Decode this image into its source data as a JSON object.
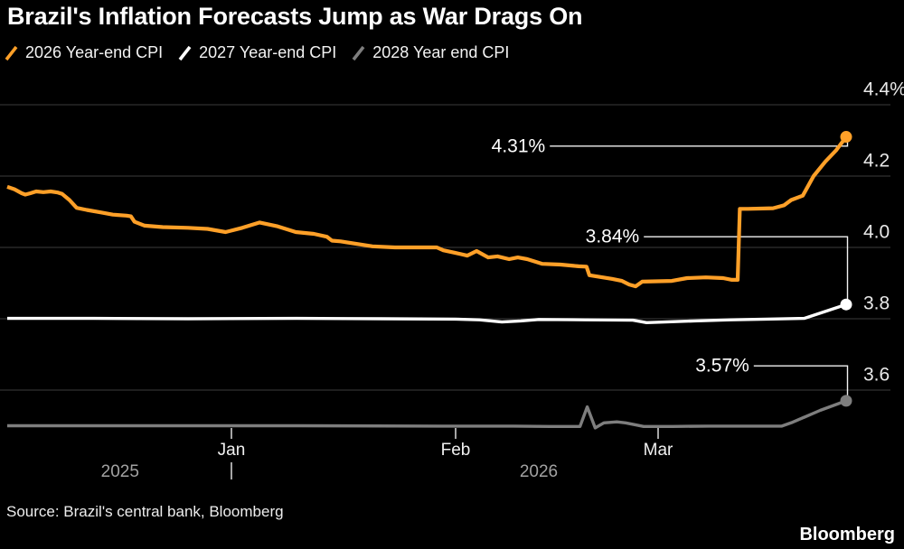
{
  "title": "Brazil's Inflation Forecasts Jump as War Drags On",
  "source": "Source: Brazil's central bank, Bloomberg",
  "logo": "Bloomberg",
  "colors": {
    "background": "#000000",
    "accent_orange": "#FFA028",
    "series_white": "#FFFFFF",
    "series_gray": "#7E7E7E"
  },
  "chart_data": {
    "type": "line",
    "title": "Brazil's Inflation Forecasts Jump as War Drags On",
    "xlabel": "",
    "ylabel": "Year-end CPI forecast (%)",
    "grid": true,
    "legend_position": "top-left",
    "x_axis": {
      "unit": "days from 2025-12-01",
      "total_days": 116,
      "month_ticks": [
        {
          "label": "Jan",
          "day": 31
        },
        {
          "label": "Feb",
          "day": 62
        },
        {
          "label": "Mar",
          "day": 90
        }
      ],
      "year_labels": [
        {
          "label": "2025",
          "day": 15.6
        },
        {
          "label": "2026",
          "day": 73.5
        }
      ],
      "year_boundary_tick_day": 31
    },
    "y_axis": {
      "unit": "%",
      "ylim": [
        3.44,
        4.44
      ],
      "ticks": [
        {
          "label": "4.4%",
          "value": 4.4
        },
        {
          "label": "4.2",
          "value": 4.2
        },
        {
          "label": "4.0",
          "value": 4.0
        },
        {
          "label": "3.8",
          "value": 3.8
        },
        {
          "label": "3.6",
          "value": 3.6
        }
      ]
    },
    "series": [
      {
        "name": "2026 Year-end CPI",
        "color": "#FFA028",
        "end_label": "4.31%",
        "points": [
          [
            0,
            4.17
          ],
          [
            1,
            4.163
          ],
          [
            2,
            4.152
          ],
          [
            2.5,
            4.148
          ],
          [
            3.2,
            4.152
          ],
          [
            4,
            4.157
          ],
          [
            5,
            4.155
          ],
          [
            6,
            4.157
          ],
          [
            7,
            4.154
          ],
          [
            7.6,
            4.15
          ],
          [
            8.6,
            4.133
          ],
          [
            9.6,
            4.111
          ],
          [
            11,
            4.105
          ],
          [
            13,
            4.098
          ],
          [
            14.6,
            4.092
          ],
          [
            16.5,
            4.089
          ],
          [
            17.1,
            4.087
          ],
          [
            17.6,
            4.072
          ],
          [
            19,
            4.061
          ],
          [
            21.5,
            4.057
          ],
          [
            25,
            4.055
          ],
          [
            27.7,
            4.052
          ],
          [
            30.2,
            4.043
          ],
          [
            32.5,
            4.055
          ],
          [
            34.9,
            4.07
          ],
          [
            37.4,
            4.059
          ],
          [
            39.9,
            4.043
          ],
          [
            42.4,
            4.038
          ],
          [
            44.2,
            4.03
          ],
          [
            44.9,
            4.019
          ],
          [
            46.1,
            4.017
          ],
          [
            48.6,
            4.009
          ],
          [
            50.5,
            4.003
          ],
          [
            53.6,
            4.0
          ],
          [
            59.4,
            4.0
          ],
          [
            60.3,
            3.992
          ],
          [
            61.9,
            3.985
          ],
          [
            63.6,
            3.977
          ],
          [
            64.9,
            3.99
          ],
          [
            66.5,
            3.972
          ],
          [
            67.8,
            3.975
          ],
          [
            69.4,
            3.967
          ],
          [
            70.6,
            3.972
          ],
          [
            71.9,
            3.967
          ],
          [
            74,
            3.954
          ],
          [
            76.5,
            3.952
          ],
          [
            79,
            3.947
          ],
          [
            80.1,
            3.946
          ],
          [
            80.5,
            3.922
          ],
          [
            83.6,
            3.912
          ],
          [
            85,
            3.906
          ],
          [
            86,
            3.896
          ],
          [
            86.9,
            3.891
          ],
          [
            87.8,
            3.904
          ],
          [
            91.9,
            3.906
          ],
          [
            94,
            3.914
          ],
          [
            96.6,
            3.916
          ],
          [
            99,
            3.914
          ],
          [
            100.2,
            3.909
          ],
          [
            101,
            3.909
          ],
          [
            101.3,
            4.108
          ],
          [
            102.4,
            4.108
          ],
          [
            105.9,
            4.11
          ],
          [
            107.4,
            4.118
          ],
          [
            108.4,
            4.133
          ],
          [
            110,
            4.145
          ],
          [
            111.5,
            4.2
          ],
          [
            113.1,
            4.24
          ],
          [
            114.6,
            4.272
          ],
          [
            116,
            4.31
          ]
        ]
      },
      {
        "name": "2027 Year-end CPI",
        "color": "#FFFFFF",
        "end_label": "3.84%",
        "points": [
          [
            0,
            3.801
          ],
          [
            12,
            3.801
          ],
          [
            25,
            3.8
          ],
          [
            40,
            3.801
          ],
          [
            52,
            3.8
          ],
          [
            62,
            3.799
          ],
          [
            65.3,
            3.797
          ],
          [
            68.4,
            3.791
          ],
          [
            71,
            3.794
          ],
          [
            73.5,
            3.798
          ],
          [
            80,
            3.797
          ],
          [
            86.5,
            3.796
          ],
          [
            88.4,
            3.789
          ],
          [
            91,
            3.791
          ],
          [
            95,
            3.794
          ],
          [
            100,
            3.797
          ],
          [
            105,
            3.799
          ],
          [
            110.2,
            3.801
          ],
          [
            116,
            3.84
          ]
        ]
      },
      {
        "name": "2028 Year end CPI",
        "color": "#7E7E7E",
        "end_label": "3.57%",
        "points": [
          [
            0,
            3.5
          ],
          [
            20,
            3.5
          ],
          [
            40,
            3.5
          ],
          [
            60,
            3.499
          ],
          [
            70,
            3.499
          ],
          [
            75,
            3.498
          ],
          [
            79.2,
            3.498
          ],
          [
            80.2,
            3.553
          ],
          [
            81.3,
            3.494
          ],
          [
            82.5,
            3.508
          ],
          [
            84.3,
            3.511
          ],
          [
            85.5,
            3.508
          ],
          [
            87,
            3.502
          ],
          [
            88,
            3.498
          ],
          [
            92,
            3.498
          ],
          [
            97,
            3.499
          ],
          [
            102,
            3.499
          ],
          [
            107.1,
            3.499
          ],
          [
            108.6,
            3.51
          ],
          [
            112.4,
            3.543
          ],
          [
            116,
            3.57
          ]
        ]
      }
    ],
    "annotations": [
      {
        "text": "4.31%",
        "line_value": 4.284,
        "label_day": 74.4,
        "end_value": 4.31
      },
      {
        "text": "3.84%",
        "line_value": 4.03,
        "label_day": 87.4,
        "end_value": 3.84
      },
      {
        "text": "3.57%",
        "line_value": 3.668,
        "label_day": 102.6,
        "end_value": 3.57
      }
    ]
  }
}
